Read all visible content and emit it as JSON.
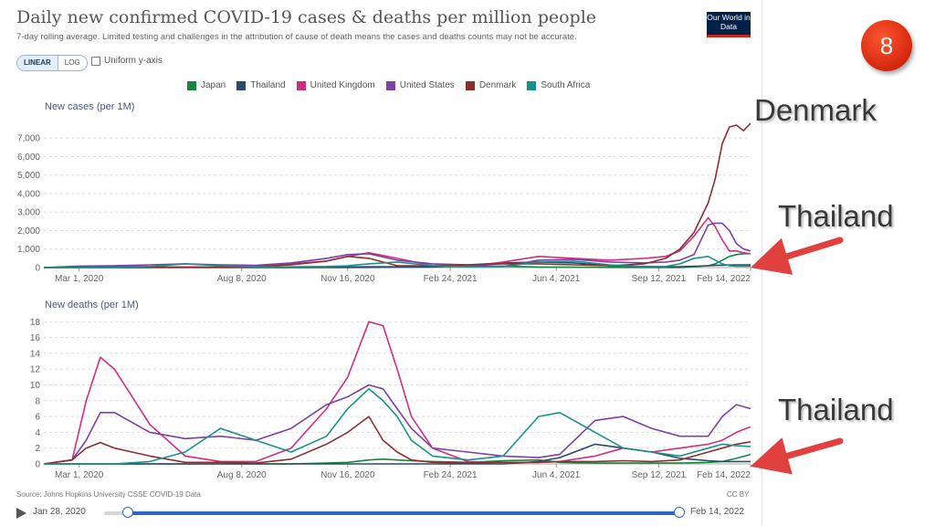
{
  "title": "Daily new confirmed COVID-19 cases & deaths per million people",
  "subtitle": "7-day rolling average. Limited testing and challenges in the attribution of cause of death means the cases and deaths counts may not be accurate.",
  "logo_text": "Our World in Data",
  "controls": {
    "linear_label": "LINEAR",
    "log_label": "LOG",
    "uniform_label": "Uniform y-axis"
  },
  "legend": [
    {
      "name": "Japan",
      "color": "#16863f"
    },
    {
      "name": "Thailand",
      "color": "#2c4a6c"
    },
    {
      "name": "United Kingdom",
      "color": "#d12e83"
    },
    {
      "name": "United States",
      "color": "#7f3fa4"
    },
    {
      "name": "Denmark",
      "color": "#8c2f2f"
    },
    {
      "name": "South Africa",
      "color": "#18918a"
    }
  ],
  "source": "Source: Johns Hopkins University CSSE COVID-19 Data",
  "license": "CC BY",
  "timeline": {
    "start": "Jan 28, 2020",
    "end": "Feb 14, 2022"
  },
  "badge": "8",
  "annotations": {
    "top_label": "Denmark",
    "mid_label": "Thailand",
    "bottom_label": "Thailand"
  },
  "chart_data": [
    {
      "type": "line",
      "title": "New cases (per 1M)",
      "ylim": [
        0,
        7800
      ],
      "yticks": [
        "0",
        "1,000",
        "2,000",
        "3,000",
        "4,000",
        "5,000",
        "6,000",
        "7,000"
      ],
      "ytick_values": [
        0,
        1000,
        2000,
        3000,
        4000,
        5000,
        6000,
        7000
      ],
      "xticks": [
        "Mar 1, 2020",
        "Aug 8, 2020",
        "Nov 16, 2020",
        "Feb 24, 2021",
        "Jun 4, 2021",
        "Sep 12, 2021",
        "Feb 14, 2022"
      ],
      "xtick_positions": [
        0.05,
        0.28,
        0.43,
        0.575,
        0.725,
        0.87,
        1.0
      ],
      "x": [
        0,
        0.05,
        0.1,
        0.15,
        0.2,
        0.25,
        0.3,
        0.35,
        0.4,
        0.43,
        0.46,
        0.5,
        0.55,
        0.6,
        0.65,
        0.7,
        0.75,
        0.8,
        0.85,
        0.88,
        0.9,
        0.92,
        0.94,
        0.95,
        0.96,
        0.97,
        0.98,
        0.99,
        1.0
      ],
      "series": [
        {
          "name": "Japan",
          "color": "#16863f",
          "values": [
            0,
            0,
            2,
            10,
            20,
            20,
            15,
            25,
            30,
            40,
            50,
            50,
            40,
            60,
            80,
            30,
            20,
            10,
            5,
            5,
            5,
            50,
            100,
            200,
            400,
            600,
            700,
            750,
            750
          ]
        },
        {
          "name": "Thailand",
          "color": "#2c4a6c",
          "values": [
            0,
            0,
            0,
            2,
            2,
            2,
            2,
            2,
            2,
            5,
            10,
            20,
            30,
            150,
            250,
            300,
            250,
            100,
            60,
            50,
            50,
            70,
            100,
            120,
            130,
            140,
            150,
            150,
            150
          ]
        },
        {
          "name": "United Kingdom",
          "color": "#d12e83",
          "values": [
            0,
            50,
            80,
            50,
            20,
            30,
            50,
            200,
            350,
            600,
            800,
            500,
            100,
            50,
            300,
            600,
            500,
            400,
            500,
            600,
            900,
            1700,
            2700,
            2200,
            1500,
            900,
            900,
            800,
            750
          ]
        },
        {
          "name": "United States",
          "color": "#7f3fa4",
          "values": [
            0,
            80,
            100,
            150,
            200,
            150,
            120,
            250,
            500,
            700,
            750,
            400,
            200,
            150,
            60,
            400,
            450,
            300,
            250,
            300,
            400,
            700,
            2300,
            2400,
            2400,
            2000,
            1300,
            1000,
            900
          ]
        },
        {
          "name": "Denmark",
          "color": "#8c2f2f",
          "values": [
            0,
            30,
            50,
            20,
            20,
            30,
            50,
            150,
            350,
            600,
            500,
            100,
            100,
            150,
            200,
            200,
            150,
            100,
            200,
            500,
            1000,
            1900,
            3500,
            4800,
            6700,
            7600,
            7700,
            7400,
            7800
          ]
        },
        {
          "name": "South Africa",
          "color": "#18918a",
          "values": [
            0,
            10,
            20,
            60,
            200,
            100,
            40,
            40,
            60,
            100,
            200,
            300,
            100,
            40,
            50,
            300,
            350,
            150,
            40,
            60,
            200,
            500,
            600,
            400,
            200,
            100,
            80,
            80,
            80
          ]
        }
      ]
    },
    {
      "type": "line",
      "title": "New deaths (per 1M)",
      "ylim": [
        0,
        18.5
      ],
      "yticks": [
        "0",
        "2",
        "4",
        "6",
        "8",
        "10",
        "12",
        "14",
        "16",
        "18"
      ],
      "ytick_values": [
        0,
        2,
        4,
        6,
        8,
        10,
        12,
        14,
        16,
        18
      ],
      "xticks": [
        "Mar 1, 2020",
        "Aug 8, 2020",
        "Nov 16, 2020",
        "Feb 24, 2021",
        "Jun 4, 2021",
        "Sep 12, 2021",
        "Feb 14, 2022"
      ],
      "xtick_positions": [
        0.05,
        0.28,
        0.43,
        0.575,
        0.725,
        0.87,
        1.0
      ],
      "x": [
        0,
        0.04,
        0.06,
        0.08,
        0.1,
        0.15,
        0.2,
        0.25,
        0.3,
        0.35,
        0.4,
        0.43,
        0.46,
        0.48,
        0.5,
        0.52,
        0.55,
        0.6,
        0.65,
        0.7,
        0.73,
        0.78,
        0.82,
        0.86,
        0.9,
        0.94,
        0.96,
        0.98,
        1.0
      ],
      "series": [
        {
          "name": "Japan",
          "color": "#16863f",
          "values": [
            0,
            0,
            0,
            0,
            0,
            0,
            0,
            0,
            0,
            0,
            0.1,
            0.2,
            0.5,
            0.6,
            0.5,
            0.4,
            0.3,
            0.2,
            0.4,
            0.5,
            0.2,
            0.1,
            0.1,
            0.1,
            0.1,
            0.2,
            0.3,
            0.7,
            1.2
          ]
        },
        {
          "name": "Thailand",
          "color": "#2c4a6c",
          "values": [
            0,
            0,
            0,
            0,
            0,
            0,
            0,
            0,
            0,
            0,
            0,
            0,
            0,
            0,
            0,
            0,
            0,
            0,
            0,
            0.3,
            0.8,
            2.5,
            2.0,
            1.5,
            0.7,
            0.4,
            0.3,
            0.3,
            0.3
          ]
        },
        {
          "name": "United Kingdom",
          "color": "#d12e83",
          "values": [
            0,
            0.5,
            8,
            13.5,
            12,
            5,
            1,
            0.3,
            0.3,
            2,
            7,
            11,
            18,
            17.5,
            12,
            6,
            2,
            0.3,
            0.2,
            0.2,
            0.3,
            1,
            2,
            1.5,
            2,
            2.5,
            3,
            4,
            4.7
          ]
        },
        {
          "name": "United States",
          "color": "#7f3fa4",
          "values": [
            0,
            0.5,
            3,
            6.5,
            6.5,
            4,
            3.2,
            3.5,
            3,
            4.5,
            7.5,
            8.5,
            10,
            9.5,
            7,
            4.5,
            2,
            1.5,
            1,
            0.8,
            1.2,
            5.5,
            6,
            4.5,
            3.5,
            3.5,
            6,
            7.5,
            7
          ]
        },
        {
          "name": "Denmark",
          "color": "#8c2f2f",
          "values": [
            0,
            0.5,
            2,
            2.7,
            2,
            1,
            0.2,
            0.2,
            0.1,
            0.6,
            2.5,
            4,
            6,
            3,
            1.5,
            0.5,
            0.2,
            0.1,
            0.2,
            0.2,
            0.3,
            0.3,
            0.4,
            0.3,
            0.5,
            1.5,
            2,
            2.5,
            2.8
          ]
        },
        {
          "name": "South Africa",
          "color": "#18918a",
          "values": [
            0,
            0,
            0,
            0,
            0,
            0.3,
            1.5,
            4.5,
            3,
            1.5,
            3.5,
            7,
            9.5,
            8,
            6,
            3,
            1,
            0.5,
            1,
            6,
            6.5,
            4,
            2,
            1.5,
            1,
            2,
            2.5,
            2.3,
            2.2
          ]
        }
      ]
    }
  ]
}
